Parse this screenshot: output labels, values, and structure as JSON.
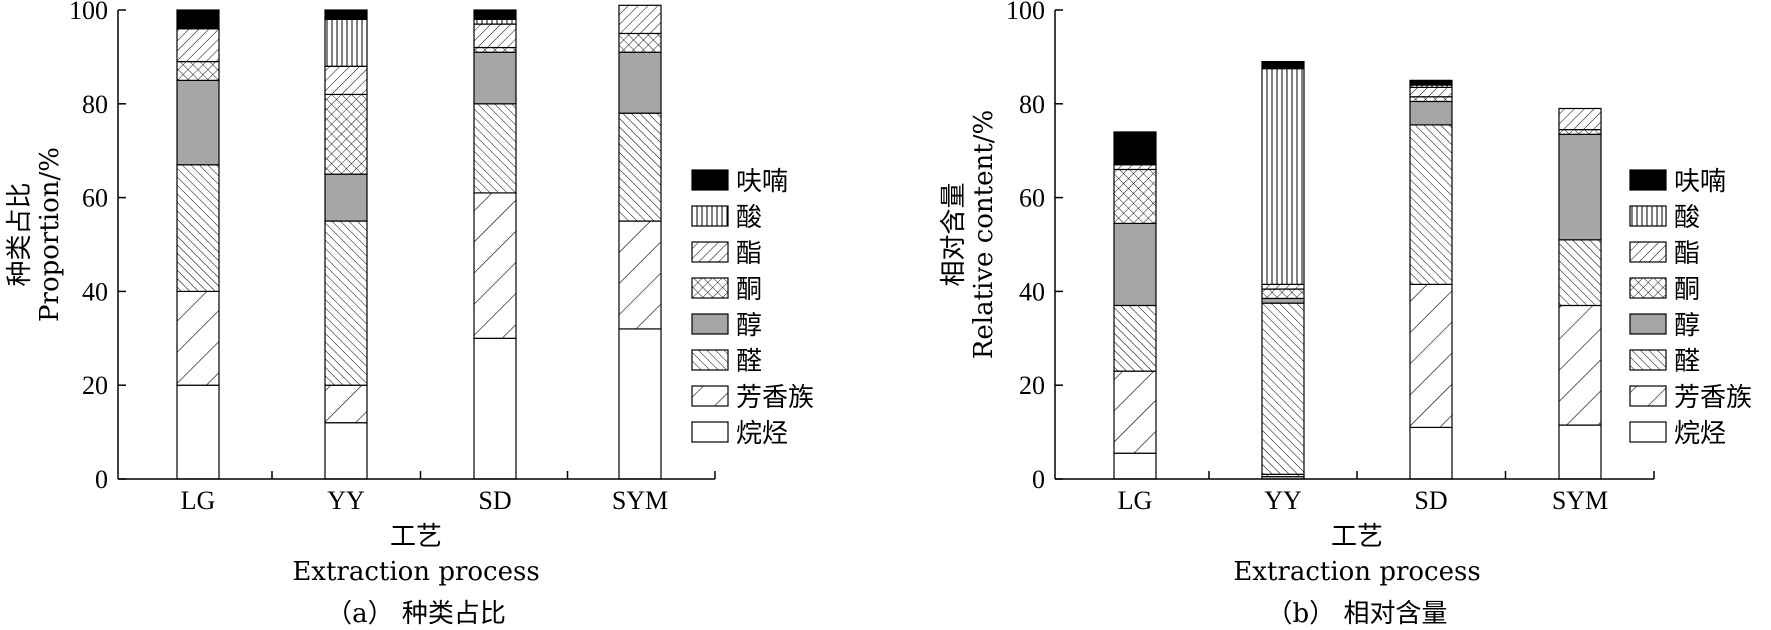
{
  "chart_data": [
    {
      "type": "bar",
      "stacked": true,
      "caption": "（a） 种类占比",
      "categories": [
        "LG",
        "YY",
        "SD",
        "SYM"
      ],
      "xlabel_cn": "工艺",
      "xlabel_en": "Extraction process",
      "ylabel_cn": "种类占比",
      "ylabel_en": "Proportion/%",
      "ylim": [
        0,
        100
      ],
      "yticks": [
        "0",
        "20",
        "40",
        "60",
        "80",
        "100"
      ],
      "legend_position": "right",
      "series": [
        {
          "name": "烷烃",
          "pattern": "blank",
          "values": [
            20,
            12,
            30,
            32
          ]
        },
        {
          "name": "芳香族",
          "pattern": "wide-forward-hatch",
          "values": [
            20,
            8,
            31,
            23
          ]
        },
        {
          "name": "醛",
          "pattern": "dense-back-hatch",
          "values": [
            27,
            35,
            19,
            23
          ]
        },
        {
          "name": "醇",
          "pattern": "grey",
          "values": [
            18,
            10,
            11,
            13
          ]
        },
        {
          "name": "酮",
          "pattern": "cross-hatch",
          "values": [
            4,
            17,
            1,
            4
          ]
        },
        {
          "name": "酯",
          "pattern": "forward-hatch",
          "values": [
            7,
            6,
            5,
            6
          ]
        },
        {
          "name": "酸",
          "pattern": "vertical-lines",
          "values": [
            0,
            10,
            1,
            0
          ]
        },
        {
          "name": "呋喃",
          "pattern": "black",
          "values": [
            4,
            2,
            2,
            0
          ]
        }
      ]
    },
    {
      "type": "bar",
      "stacked": true,
      "caption": "（b） 相对含量",
      "categories": [
        "LG",
        "YY",
        "SD",
        "SYM"
      ],
      "xlabel_cn": "工艺",
      "xlabel_en": "Extraction process",
      "ylabel_cn": "相对含量",
      "ylabel_en": "Relative content/%",
      "ylim": [
        0,
        100
      ],
      "yticks": [
        "0",
        "20",
        "40",
        "60",
        "80",
        "100"
      ],
      "legend_position": "right",
      "series": [
        {
          "name": "烷烃",
          "pattern": "blank",
          "values": [
            5.5,
            0.5,
            11,
            11.5
          ]
        },
        {
          "name": "芳香族",
          "pattern": "wide-forward-hatch",
          "values": [
            17.5,
            0.5,
            30.5,
            25.5
          ]
        },
        {
          "name": "醛",
          "pattern": "dense-back-hatch",
          "values": [
            14,
            36.5,
            34,
            14
          ]
        },
        {
          "name": "醇",
          "pattern": "grey",
          "values": [
            17.5,
            1,
            5,
            22.5
          ]
        },
        {
          "name": "酮",
          "pattern": "cross-hatch",
          "values": [
            11.5,
            2,
            1,
            1
          ]
        },
        {
          "name": "酯",
          "pattern": "forward-hatch",
          "values": [
            1,
            1,
            2,
            4.5
          ]
        },
        {
          "name": "酸",
          "pattern": "vertical-lines",
          "values": [
            0,
            46,
            0.5,
            0
          ]
        },
        {
          "name": "呋喃",
          "pattern": "black",
          "values": [
            7,
            1.5,
            1,
            0
          ]
        }
      ]
    }
  ]
}
